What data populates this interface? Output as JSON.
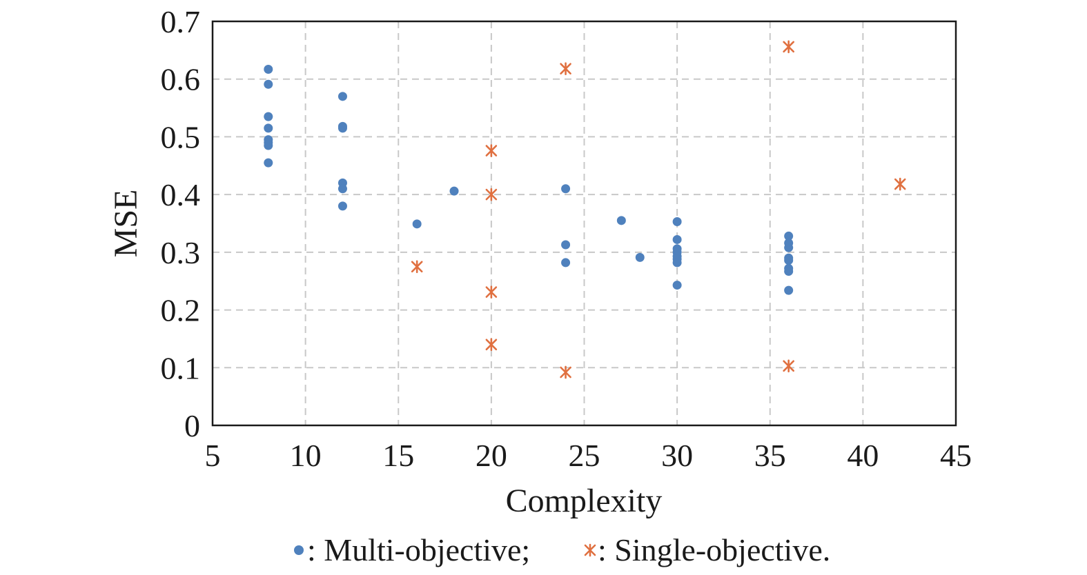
{
  "chart_data": {
    "type": "scatter",
    "title": "",
    "xlabel": "Complexity",
    "ylabel": "MSE",
    "xlim": [
      5,
      45
    ],
    "ylim": [
      0,
      0.7
    ],
    "xticks": [
      5,
      10,
      15,
      20,
      25,
      30,
      35,
      40,
      45
    ],
    "yticks": [
      0,
      0.1,
      0.2,
      0.3,
      0.4,
      0.5,
      0.6,
      0.7
    ],
    "grid": true,
    "legend_placement": "bottom",
    "series": [
      {
        "name": "Multi-objective",
        "legend_text": ": Multi-objective;",
        "color": "#4f81bd",
        "marker": "dot",
        "points": [
          [
            8,
            0.617
          ],
          [
            8,
            0.591
          ],
          [
            8,
            0.535
          ],
          [
            8,
            0.515
          ],
          [
            8,
            0.495
          ],
          [
            8,
            0.49
          ],
          [
            8,
            0.485
          ],
          [
            8,
            0.455
          ],
          [
            12,
            0.57
          ],
          [
            12,
            0.518
          ],
          [
            12,
            0.515
          ],
          [
            12,
            0.42
          ],
          [
            12,
            0.41
          ],
          [
            12,
            0.38
          ],
          [
            16,
            0.349
          ],
          [
            18,
            0.406
          ],
          [
            24,
            0.41
          ],
          [
            24,
            0.313
          ],
          [
            24,
            0.282
          ],
          [
            27,
            0.355
          ],
          [
            28,
            0.291
          ],
          [
            30,
            0.353
          ],
          [
            30,
            0.322
          ],
          [
            30,
            0.306
          ],
          [
            30,
            0.3
          ],
          [
            30,
            0.293
          ],
          [
            30,
            0.288
          ],
          [
            30,
            0.282
          ],
          [
            30,
            0.243
          ],
          [
            36,
            0.328
          ],
          [
            36,
            0.316
          ],
          [
            36,
            0.308
          ],
          [
            36,
            0.29
          ],
          [
            36,
            0.286
          ],
          [
            36,
            0.272
          ],
          [
            36,
            0.267
          ],
          [
            36,
            0.234
          ]
        ]
      },
      {
        "name": "Single-objective",
        "legend_text": ": Single-objective.",
        "color": "#e07040",
        "marker": "asterisk",
        "points": [
          [
            16,
            0.275
          ],
          [
            20,
            0.476
          ],
          [
            20,
            0.4
          ],
          [
            20,
            0.231
          ],
          [
            20,
            0.14
          ],
          [
            24,
            0.618
          ],
          [
            24,
            0.092
          ],
          [
            36,
            0.656
          ],
          [
            36,
            0.103
          ],
          [
            42,
            0.418
          ]
        ]
      }
    ]
  }
}
